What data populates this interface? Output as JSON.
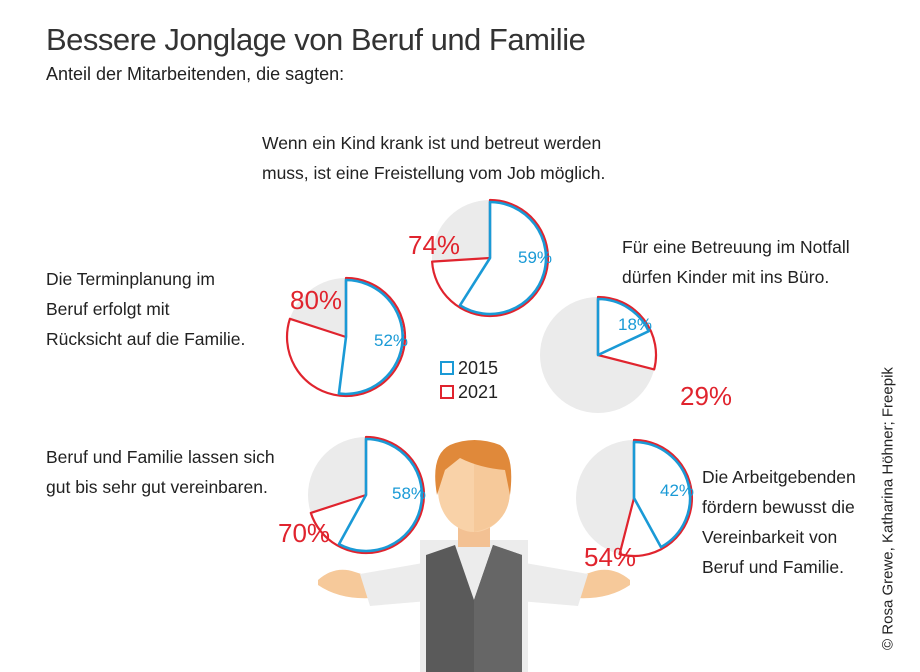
{
  "title": "Bessere Jonglage von Beruf und Familie",
  "subtitle": "Anteil der Mitarbeitenden, die sagten:",
  "credit": "© Rosa Grewe, Katharina Höhner; Freepik",
  "chart_data": {
    "type": "pie",
    "title": "Bessere Jonglage von Beruf und Familie",
    "subtitle": "Anteil der Mitarbeitenden, die sagten:",
    "legend": [
      {
        "name": "2015",
        "color": "#1a9ad6"
      },
      {
        "name": "2021",
        "color": "#e0242e"
      }
    ],
    "legend_placement": "center",
    "items": [
      {
        "question_lines": [
          "Wenn ein Kind krank ist und betreut werden",
          "muss, ist eine Freistellung vom Job möglich."
        ],
        "v2015": 59,
        "v2021": 74,
        "label2015": "59%",
        "label2021": "74%"
      },
      {
        "question_lines": [
          "Die Terminplanung im",
          "Beruf erfolgt mit",
          "Rücksicht auf die Familie."
        ],
        "v2015": 52,
        "v2021": 80,
        "label2015": "52%",
        "label2021": "80%"
      },
      {
        "question_lines": [
          "Für eine Betreuung im Notfall",
          "dürfen Kinder mit ins Büro."
        ],
        "v2015": 18,
        "v2021": 29,
        "label2015": "18%",
        "label2021": "29%"
      },
      {
        "question_lines": [
          "Beruf und Familie lassen sich",
          "gut bis sehr gut vereinbaren."
        ],
        "v2015": 58,
        "v2021": 70,
        "label2015": "58%",
        "label2021": "70%"
      },
      {
        "question_lines": [
          "Die Arbeitgebenden",
          "fördern bewusst die",
          "Vereinbarkeit von",
          "Beruf und Familie."
        ],
        "v2015": 42,
        "v2021": 54,
        "label2015": "42%",
        "label2021": "54%"
      }
    ]
  }
}
